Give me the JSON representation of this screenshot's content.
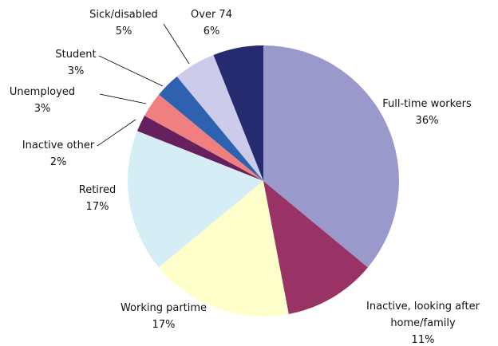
{
  "chart_data": {
    "type": "pie",
    "categories": [
      "Full-time workers",
      "Inactive, looking after home/family",
      "Working partime",
      "Retired",
      "Inactive other",
      "Unemployed",
      "Student",
      "Sick/disabled",
      "Over 74"
    ],
    "values": [
      36,
      11,
      17,
      17,
      2,
      3,
      3,
      5,
      6
    ],
    "value_labels": [
      "36%",
      "11%",
      "17%",
      "17%",
      "2%",
      "3%",
      "3%",
      "5%",
      "6%"
    ],
    "colors": [
      "#9999cc",
      "#993366",
      "#ffffcc",
      "#d5edf5",
      "#66205e",
      "#f08080",
      "#2e62b0",
      "#ccccea",
      "#262a6e"
    ]
  }
}
